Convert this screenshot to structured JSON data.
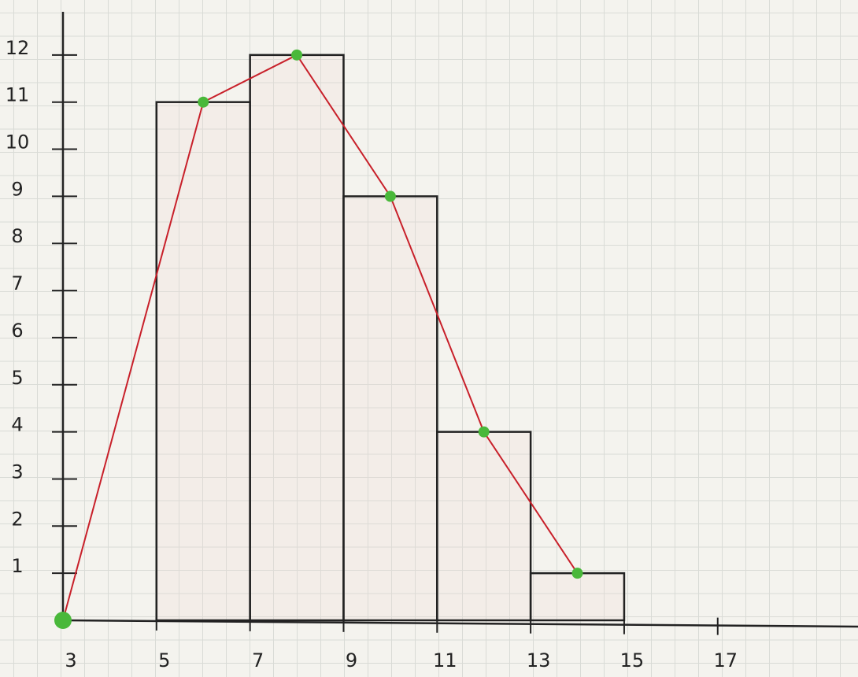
{
  "chart_data": {
    "type": "histogram",
    "bins": [
      5,
      7,
      9,
      11,
      13,
      15
    ],
    "values": [
      11,
      12,
      9,
      4,
      1
    ],
    "color": "#222222",
    "xlim": [
      3,
      20
    ],
    "ylim": [
      0,
      13
    ],
    "xticks": [
      3,
      5,
      7,
      9,
      11,
      13,
      15,
      17
    ],
    "yticks": [
      1,
      2,
      3,
      4,
      5,
      6,
      7,
      8,
      9,
      10,
      11,
      12
    ],
    "line": {
      "type": "line",
      "color": "#c8202a",
      "marker_color": "#49b83a",
      "x": [
        3,
        6,
        8,
        10,
        12,
        14
      ],
      "values": [
        0,
        11,
        12,
        9,
        4,
        1
      ]
    }
  }
}
